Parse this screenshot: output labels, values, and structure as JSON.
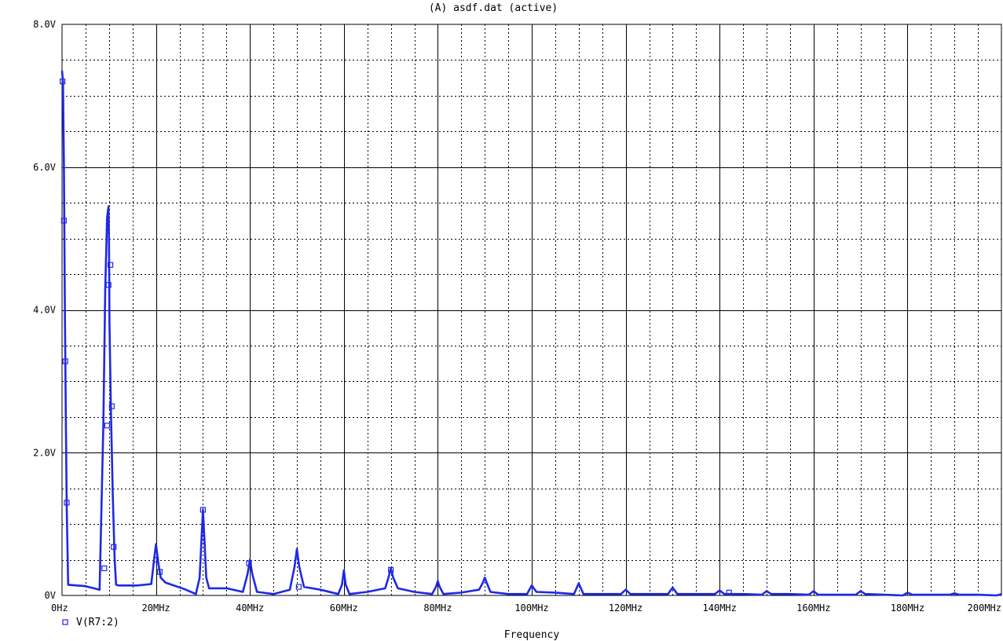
{
  "chart_data": {
    "type": "line",
    "title": "(A) asdf.dat (active)",
    "xlabel": "Frequency",
    "ylabel": "",
    "xlim": [
      0,
      200
    ],
    "ylim": [
      0,
      8
    ],
    "x_unit": "MHz",
    "y_unit": "V",
    "x_tick_labels": [
      "0Hz",
      "20MHz",
      "40MHz",
      "60MHz",
      "80MHz",
      "100MHz",
      "120MHz",
      "140MHz",
      "160MHz",
      "180MHz",
      "200MHz"
    ],
    "y_tick_labels": [
      "0V",
      "2.0V",
      "4.0V",
      "6.0V",
      "8.0V"
    ],
    "grid": true,
    "legend": "bottom-left",
    "colors": {
      "series": "#1f28e6",
      "grid": "#000000",
      "axis": "#000000"
    },
    "series": [
      {
        "name": "V(R7:2)",
        "x": [
          0,
          0.2,
          0.4,
          0.6,
          0.8,
          1.0,
          1.3,
          5,
          8.0,
          8.8,
          9.2,
          9.6,
          9.9,
          10.0,
          10.1,
          10.4,
          10.8,
          11.2,
          11.5,
          12,
          16,
          19.0,
          19.5,
          20.0,
          20.5,
          21.0,
          22,
          26,
          28.5,
          29.3,
          29.7,
          30.0,
          30.3,
          30.7,
          31.3,
          35,
          38.5,
          39.5,
          40.0,
          40.5,
          41.5,
          45,
          48.5,
          49.5,
          50.0,
          50.5,
          51.5,
          55,
          58.8,
          59.6,
          60.0,
          60.4,
          61.2,
          65,
          68.8,
          69.5,
          70.0,
          70.5,
          71.5,
          75,
          78.8,
          79.6,
          80.0,
          80.4,
          81.2,
          85,
          88.8,
          89.6,
          90.0,
          90.4,
          91.2,
          95,
          99,
          100,
          101,
          105,
          109,
          110,
          111,
          115,
          119,
          120,
          121,
          125,
          129,
          130,
          131,
          135,
          139,
          140,
          141,
          145,
          149,
          150,
          151,
          155,
          159,
          160,
          161,
          165,
          169,
          170,
          171,
          175,
          179,
          180,
          181,
          185,
          189,
          190,
          191,
          195,
          199,
          200
        ],
        "values": [
          7.35,
          7.2,
          6.0,
          4.0,
          2.5,
          1.2,
          0.15,
          0.13,
          0.08,
          2.4,
          4.3,
          5.3,
          5.45,
          4.9,
          3.8,
          2.6,
          1.4,
          0.5,
          0.15,
          0.14,
          0.14,
          0.16,
          0.45,
          0.72,
          0.45,
          0.25,
          0.18,
          0.09,
          0.02,
          0.25,
          0.8,
          1.2,
          0.8,
          0.25,
          0.1,
          0.1,
          0.05,
          0.3,
          0.5,
          0.3,
          0.05,
          0.02,
          0.08,
          0.4,
          0.65,
          0.4,
          0.12,
          0.08,
          0.02,
          0.15,
          0.35,
          0.15,
          0.02,
          0.05,
          0.1,
          0.25,
          0.38,
          0.25,
          0.1,
          0.05,
          0.02,
          0.12,
          0.2,
          0.12,
          0.02,
          0.04,
          0.08,
          0.18,
          0.25,
          0.18,
          0.05,
          0.02,
          0.02,
          0.14,
          0.05,
          0.04,
          0.02,
          0.17,
          0.02,
          0.02,
          0.02,
          0.08,
          0.02,
          0.02,
          0.02,
          0.11,
          0.02,
          0.02,
          0.02,
          0.07,
          0.02,
          0.02,
          0.01,
          0.06,
          0.02,
          0.02,
          0.01,
          0.06,
          0.01,
          0.01,
          0.01,
          0.06,
          0.02,
          0.01,
          0.0,
          0.04,
          0.01,
          0.01,
          0.01,
          0.03,
          0.01,
          0.01,
          0.0,
          0.02
        ],
        "markers_x": [
          0.1,
          0.4,
          0.7,
          1.0,
          9.0,
          9.6,
          9.9,
          10.3,
          10.6,
          11.0,
          20.0,
          20.8,
          30.0,
          39.8,
          50.4,
          70.0,
          142
        ],
        "markers_y": [
          7.2,
          5.25,
          3.28,
          1.3,
          0.38,
          2.38,
          4.35,
          4.63,
          2.65,
          0.68,
          0.5,
          0.33,
          1.2,
          0.45,
          0.12,
          0.36,
          0.04
        ]
      }
    ]
  }
}
